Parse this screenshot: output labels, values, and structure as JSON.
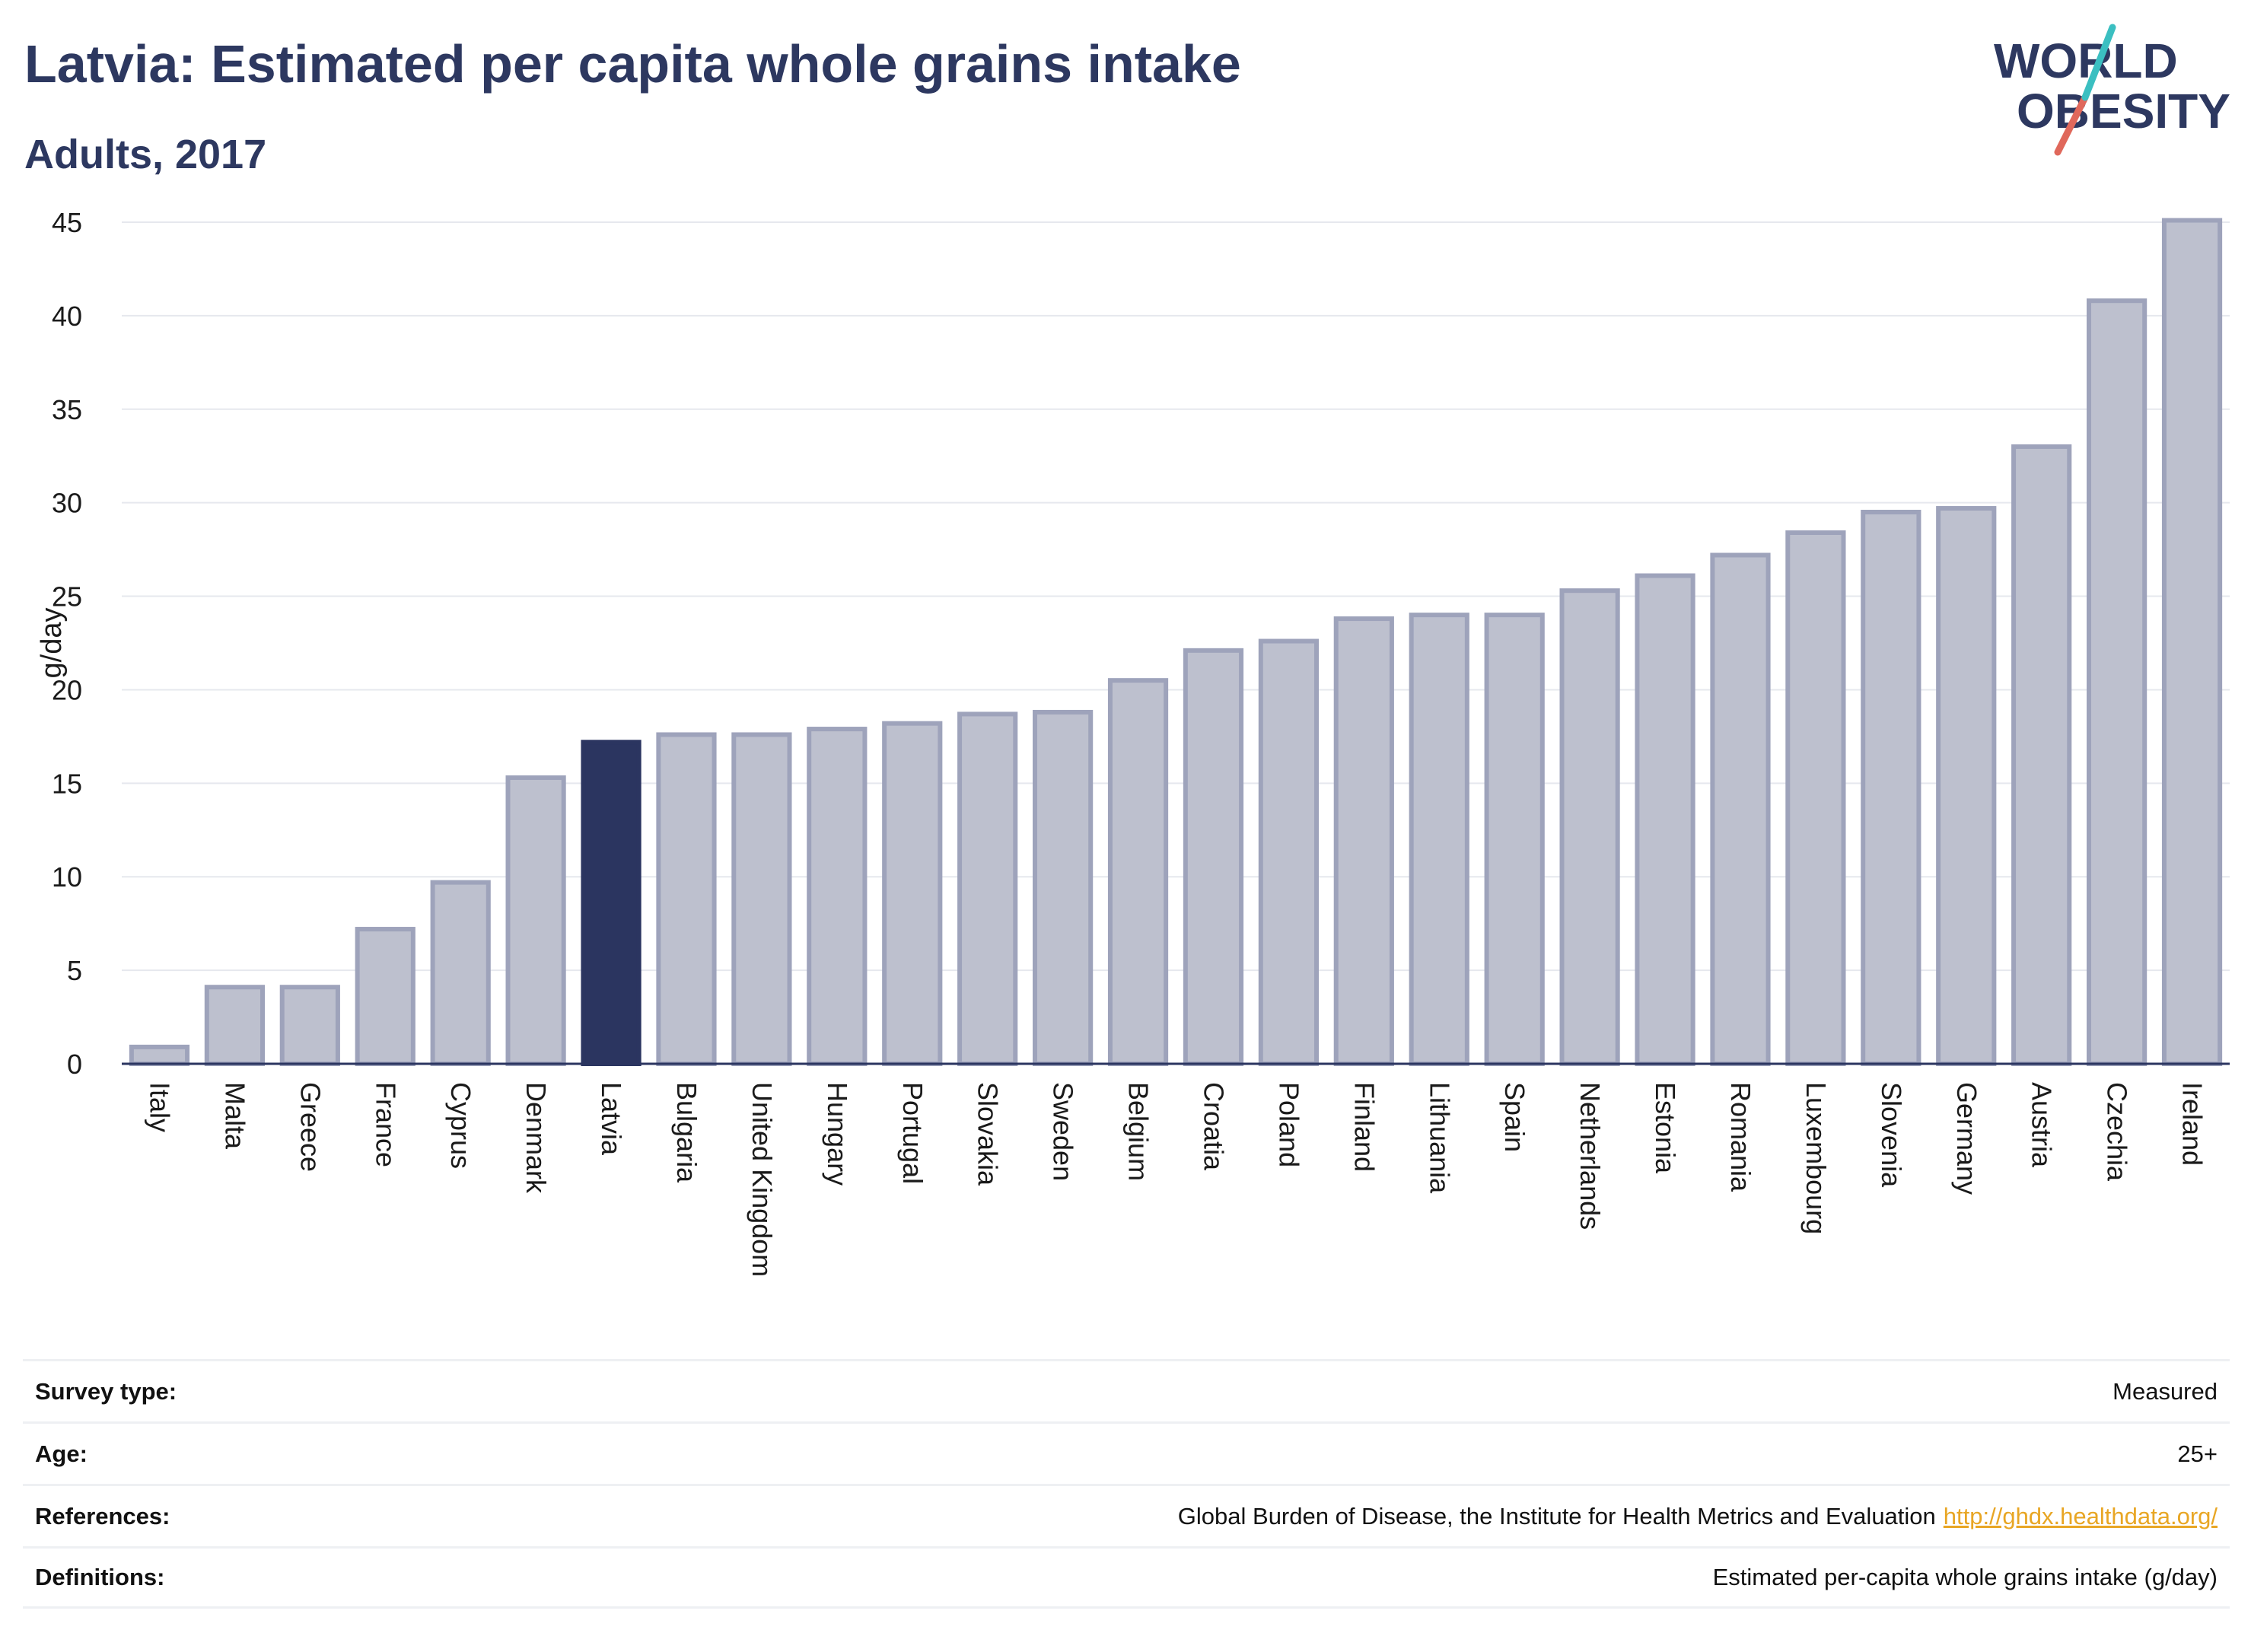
{
  "header": {
    "title": "Latvia: Estimated per capita whole grains intake",
    "subtitle": "Adults, 2017"
  },
  "logo": {
    "line1": "WORLD",
    "line2": "OBESITY"
  },
  "colors": {
    "highlight": "#2b3560",
    "bar": "#bdc0ce",
    "bar_border": "#9ea3bb",
    "text": "#2d3860",
    "link": "#e8a624"
  },
  "chart_data": {
    "type": "bar",
    "title": "Latvia: Estimated per capita whole grains intake",
    "subtitle": "Adults, 2017",
    "xlabel": "",
    "ylabel": "g/day",
    "ylim": [
      0,
      45
    ],
    "yticks": [
      0,
      5,
      10,
      15,
      20,
      25,
      30,
      35,
      40,
      45
    ],
    "grid": true,
    "highlight": "Latvia",
    "categories": [
      "Italy",
      "Malta",
      "Greece",
      "France",
      "Cyprus",
      "Denmark",
      "Latvia",
      "Bulgaria",
      "United Kingdom",
      "Hungary",
      "Portugal",
      "Slovakia",
      "Sweden",
      "Belgium",
      "Croatia",
      "Poland",
      "Finland",
      "Lithuania",
      "Spain",
      "Netherlands",
      "Estonia",
      "Romania",
      "Luxembourg",
      "Slovenia",
      "Germany",
      "Austria",
      "Czechia",
      "Ireland"
    ],
    "values": [
      0.9,
      4.1,
      4.1,
      7.2,
      9.7,
      15.3,
      17.2,
      17.6,
      17.6,
      17.9,
      18.2,
      18.7,
      18.8,
      20.5,
      22.1,
      22.6,
      23.8,
      24.0,
      24.0,
      25.3,
      26.1,
      27.2,
      28.4,
      29.5,
      29.7,
      33.0,
      40.8,
      45.1
    ]
  },
  "info": {
    "survey_type_label": "Survey type:",
    "survey_type_value": "Measured",
    "age_label": "Age:",
    "age_value": "25+",
    "references_label": "References:",
    "references_value": "Global Burden of Disease, the Institute for Health Metrics and Evaluation",
    "references_link": "http://ghdx.healthdata.org/",
    "definitions_label": "Definitions:",
    "definitions_value": "Estimated per-capita whole grains intake (g/day)"
  }
}
